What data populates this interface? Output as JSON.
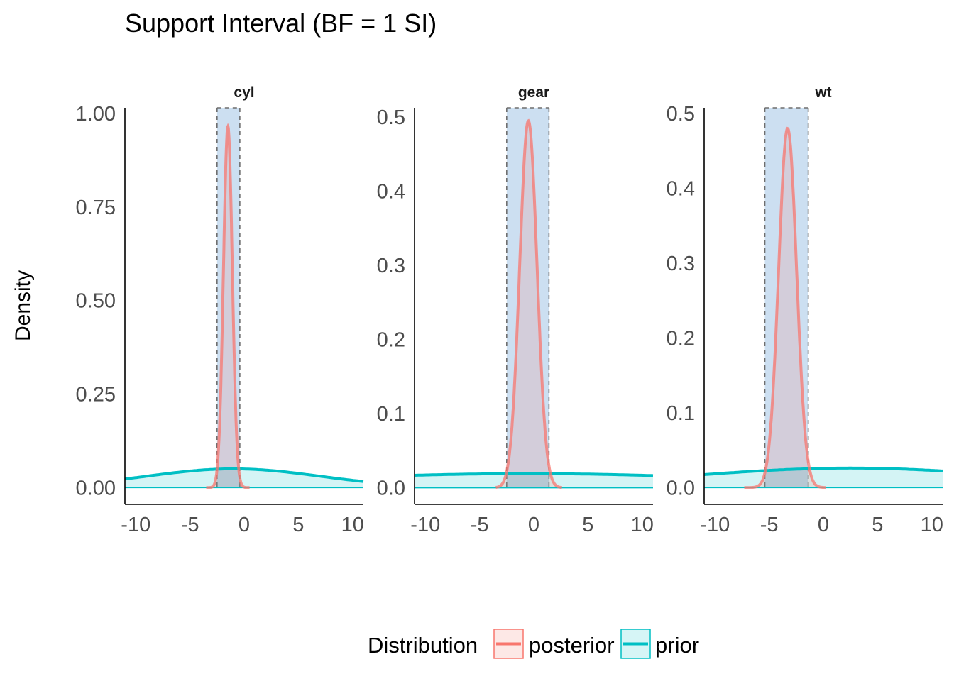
{
  "chart_data": {
    "type": "area",
    "title": "Support Interval (BF = 1 SI)",
    "ylabel": "Density",
    "xlabel": "",
    "colors": {
      "posterior": "#F8766D",
      "prior": "#00BFC4",
      "interval_fill": "#C6DBEF",
      "interval_edge": "#6e6e6e"
    },
    "legend": {
      "title": "Distribution",
      "position": "bottom",
      "items": [
        {
          "label": "posterior",
          "color": "#F8766D"
        },
        {
          "label": "prior",
          "color": "#00BFC4"
        }
      ]
    },
    "panels": [
      {
        "name": "cyl",
        "xlim": [
          -11,
          11
        ],
        "ylim": [
          -0.045,
          1.015
        ],
        "xticks": [
          -10,
          -5,
          0,
          5,
          10
        ],
        "xtick_labels": [
          "-10",
          "-5",
          "0",
          "5",
          "10"
        ],
        "yticks": [
          0,
          0.25,
          0.5,
          0.75,
          1.0
        ],
        "ytick_labels": [
          "0.00",
          "0.25",
          "0.50",
          "0.75",
          "1.00"
        ],
        "interval": [
          -2.5,
          -0.4
        ],
        "posterior": {
          "mean": -1.5,
          "sd": 0.41,
          "peak": 0.965,
          "range": [
            -3.5,
            0.5
          ]
        },
        "prior": {
          "mean": -1.0,
          "sd": 8.0,
          "peak": 0.05
        }
      },
      {
        "name": "gear",
        "xlim": [
          -11,
          11
        ],
        "ylim": [
          -0.0225,
          0.5125
        ],
        "xticks": [
          -10,
          -5,
          0,
          5,
          10
        ],
        "xtick_labels": [
          "-10",
          "-5",
          "0",
          "5",
          "10"
        ],
        "yticks": [
          0,
          0.1,
          0.2,
          0.3,
          0.4,
          0.5
        ],
        "ytick_labels": [
          "0.0",
          "0.1",
          "0.2",
          "0.3",
          "0.4",
          "0.5"
        ],
        "interval": [
          -2.5,
          1.4
        ],
        "posterior": {
          "mean": -0.5,
          "sd": 0.8,
          "peak": 0.495,
          "range": [
            -3.5,
            2.6
          ]
        },
        "prior": {
          "mean": -0.5,
          "sd": 21.0,
          "peak": 0.019
        }
      },
      {
        "name": "wt",
        "xlim": [
          -11,
          11
        ],
        "ylim": [
          -0.0225,
          0.5075
        ],
        "xticks": [
          -10,
          -5,
          0,
          5,
          10
        ],
        "xtick_labels": [
          "-10",
          "-5",
          "0",
          "5",
          "10"
        ],
        "yticks": [
          0,
          0.1,
          0.2,
          0.3,
          0.4,
          0.5
        ],
        "ytick_labels": [
          "0.0",
          "0.1",
          "0.2",
          "0.3",
          "0.4",
          "0.5"
        ],
        "interval": [
          -5.4,
          -1.4
        ],
        "posterior": {
          "mean": -3.3,
          "sd": 0.83,
          "peak": 0.48,
          "range": [
            -7.3,
            0.2
          ]
        },
        "prior": {
          "mean": 2.5,
          "sd": 15.0,
          "peak": 0.026
        }
      }
    ]
  }
}
